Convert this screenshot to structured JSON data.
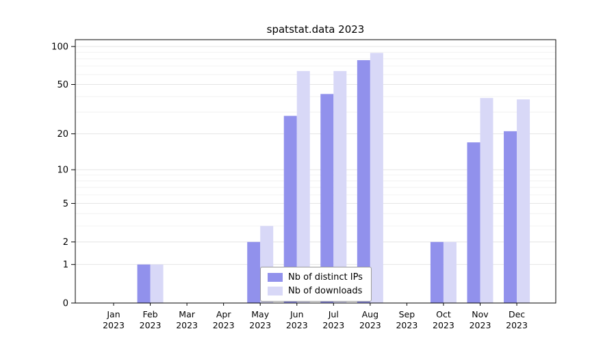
{
  "chart_data": {
    "type": "bar",
    "title": "spatstat.data 2023",
    "scale": "log1p",
    "ylim": [
      0,
      100
    ],
    "yticks": [
      0,
      1,
      2,
      5,
      10,
      20,
      50,
      100
    ],
    "minor_gridlines": [
      3,
      4,
      6,
      7,
      8,
      9,
      30,
      40,
      60,
      70,
      80,
      90
    ],
    "months": [
      "Jan",
      "Feb",
      "Mar",
      "Apr",
      "May",
      "Jun",
      "Jul",
      "Aug",
      "Sep",
      "Oct",
      "Nov",
      "Dec"
    ],
    "year": "2023",
    "legend_position": "bottom-center-inside",
    "grid": true,
    "series": [
      {
        "name": "Nb of distinct IPs",
        "color": "#9191ec",
        "values": [
          0,
          1,
          0,
          0,
          2,
          28,
          42,
          78,
          0,
          2,
          17,
          21
        ]
      },
      {
        "name": "Nb of downloads",
        "color": "#d8d8f7",
        "values": [
          0,
          1,
          0,
          0,
          3,
          64,
          64,
          89,
          0,
          2,
          39,
          38
        ]
      }
    ]
  }
}
